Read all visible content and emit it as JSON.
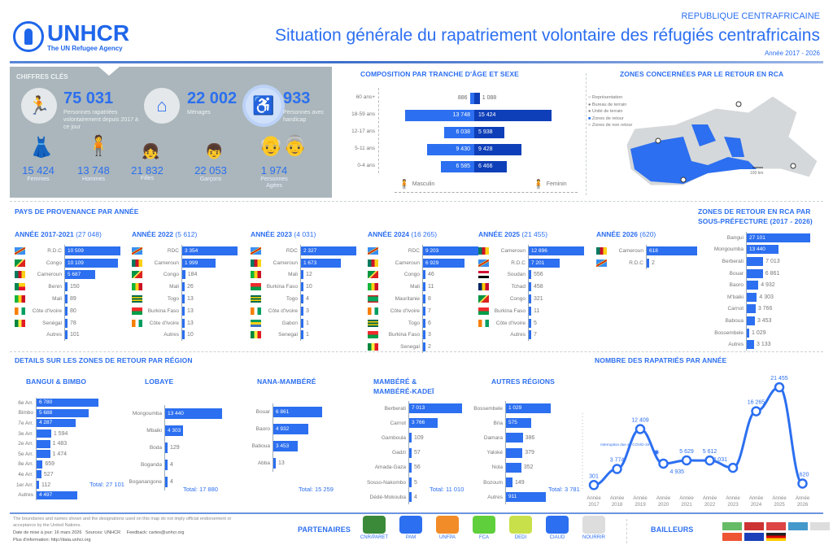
{
  "header": {
    "org": "UNHCR",
    "org_sub": "The UN Refugee Agency",
    "country": "REPUBLIQUE CENTRAFRICAINE",
    "title": "Situation générale du rapatriement volontaire des réfugiés centrafricains",
    "period": "Année 2017 - 2026"
  },
  "key_figures": {
    "title": "CHIFFRES CLÉS",
    "main": [
      {
        "value": "75 031",
        "label": "Personnes rapatriées volontairement depuis 2017 à ce jour",
        "icon": "returnee-icon"
      },
      {
        "value": "22 002",
        "label": "Ménages",
        "icon": "household-icon"
      },
      {
        "value": "933",
        "label": "Personnes avec handicap",
        "icon": "wheelchair-icon"
      }
    ],
    "breakdown": [
      {
        "value": "15 424",
        "label": "Femmes"
      },
      {
        "value": "13 748",
        "label": "Hommes"
      },
      {
        "value": "21 832",
        "label": "Filles"
      },
      {
        "value": "22 053",
        "label": "Garçons"
      },
      {
        "value": "1 974",
        "label": "Personnes Agées"
      }
    ]
  },
  "chart_data": [
    {
      "type": "bar",
      "id": "pyramid",
      "title": "COMPOSITION PAR TRANCHE D'ÂGE ET SEXE",
      "categories": [
        "60 ans+",
        "18-59 ans",
        "12-17 ans",
        "5-11 ans",
        "0-4 ans"
      ],
      "series": [
        {
          "name": "Masculin",
          "values": [
            886,
            13748,
            6038,
            9430,
            6585
          ],
          "color": "#2c6ff0"
        },
        {
          "name": "Feminin",
          "values": [
            1088,
            15424,
            5938,
            9428,
            6466
          ],
          "color": "#0f3fb8"
        }
      ]
    },
    {
      "type": "bar",
      "id": "subprefecture",
      "title": "ZONES DE RETOUR EN RCA PAR SOUS-PRÉFECTURE (2017 - 2026)",
      "categories": [
        "Bangui",
        "Mongoumba",
        "Berberati",
        "Bouar",
        "Baoro",
        "M'baiki",
        "Carnot",
        "Baboua",
        "Bossembele",
        "Autres"
      ],
      "values": [
        27101,
        13440,
        7013,
        6861,
        4932,
        4303,
        3766,
        3453,
        1029,
        3133
      ]
    },
    {
      "type": "line",
      "id": "per_year",
      "title": "NOMBRE DES RAPATRIÉS PAR ANNÉE",
      "categories": [
        "Année 2017",
        "Année 2018",
        "Année 2019",
        "Année 2020",
        "Année 2021",
        "Année 2022",
        "Année 2023",
        "Année 2024",
        "Année 2025",
        "Année 2026"
      ],
      "values": [
        301,
        3774,
        12409,
        4935,
        5629,
        5612,
        4031,
        16265,
        21455,
        620
      ],
      "annotation": "Interruption due au COVID-19",
      "ylim": [
        0,
        22000
      ]
    }
  ],
  "provenance": {
    "title": "PAYS DE PROVENANCE PAR ANNÉE",
    "years": [
      {
        "label": "ANNÉE 2017-2021",
        "total": "(27 048)",
        "items": [
          {
            "c": "R.D.C",
            "v": 10509
          },
          {
            "c": "Congo",
            "v": 10109
          },
          {
            "c": "Cameroun",
            "v": 5687
          },
          {
            "c": "Benin",
            "v": 150
          },
          {
            "c": "Mali",
            "v": 89
          },
          {
            "c": "Côte d'Ivoire",
            "v": 80
          },
          {
            "c": "Senégal",
            "v": 78
          },
          {
            "c": "Autres",
            "v": 101
          }
        ]
      },
      {
        "label": "ANNÉE 2022",
        "total": "(5 612)",
        "items": [
          {
            "c": "RDC",
            "v": 3354
          },
          {
            "c": "Cameroun",
            "v": 1999
          },
          {
            "c": "Congo",
            "v": 184
          },
          {
            "c": "Mali",
            "v": 26
          },
          {
            "c": "Togo",
            "v": 13
          },
          {
            "c": "Burkina Faso",
            "v": 13
          },
          {
            "c": "Côte d'Ivoire",
            "v": 13
          },
          {
            "c": "Autres",
            "v": 10
          }
        ]
      },
      {
        "label": "ANNÉE 2023",
        "total": "(4 031)",
        "items": [
          {
            "c": "RDC",
            "v": 2327
          },
          {
            "c": "Cameroun",
            "v": 1673
          },
          {
            "c": "Mali",
            "v": 12
          },
          {
            "c": "Burkina Faso",
            "v": 10
          },
          {
            "c": "Togo",
            "v": 4
          },
          {
            "c": "Côte d'Ivoire",
            "v": 3
          },
          {
            "c": "Gabon",
            "v": 1
          },
          {
            "c": "Senegal",
            "v": 1
          }
        ]
      },
      {
        "label": "ANNÉE 2024",
        "total": "(16 265)",
        "items": [
          {
            "c": "RDC",
            "v": 9203
          },
          {
            "c": "Cameroun",
            "v": 6929
          },
          {
            "c": "Congo",
            "v": 46
          },
          {
            "c": "Mali",
            "v": 11
          },
          {
            "c": "Mauritanie",
            "v": 8
          },
          {
            "c": "Côte d'Ivoire",
            "v": 7
          },
          {
            "c": "Togo",
            "v": 6
          },
          {
            "c": "Burkina Faso",
            "v": 3
          },
          {
            "c": "Senegal",
            "v": 2
          }
        ]
      },
      {
        "label": "ANNÉE 2025",
        "total": "(21 455)",
        "items": [
          {
            "c": "Cameroun",
            "v": 12896
          },
          {
            "c": "R.D.C",
            "v": 7201
          },
          {
            "c": "Soudan",
            "v": 556
          },
          {
            "c": "Tchad",
            "v": 458
          },
          {
            "c": "Congo",
            "v": 321
          },
          {
            "c": "Burkina Faso",
            "v": 11
          },
          {
            "c": "Côte d'Ivoire",
            "v": 5
          },
          {
            "c": "Autres",
            "v": 7
          }
        ]
      },
      {
        "label": "ANNÉE 2026",
        "total": "(620)",
        "items": [
          {
            "c": "Cameroun",
            "v": 618
          },
          {
            "c": "R.D.C",
            "v": 2
          }
        ]
      }
    ]
  },
  "map": {
    "title": "ZONES CONCERNÉES PAR LE RETOUR EN RCA",
    "legend": [
      "Représentation",
      "Bureau de terrain",
      "Unité de terrain",
      "Zones de retour",
      "Zones de non retour"
    ],
    "scale": "100 km"
  },
  "regions": {
    "title": "DETAILS SUR LES ZONES DE RETOUR PAR RÉGION",
    "blocks": [
      {
        "name": "BANGUI & BIMBO",
        "total": "Total: 27 101",
        "items": [
          {
            "c": "6e Arr.",
            "v": 6780
          },
          {
            "c": "Bimbo",
            "v": 5688
          },
          {
            "c": "7e Arr.",
            "v": 4287
          },
          {
            "c": "3e Arr.",
            "v": 1594
          },
          {
            "c": "2e Arr.",
            "v": 1483
          },
          {
            "c": "5e Arr.",
            "v": 1474
          },
          {
            "c": "8e Arr.",
            "v": 659
          },
          {
            "c": "4e Arr.",
            "v": 527
          },
          {
            "c": "1er Arr.",
            "v": 112
          },
          {
            "c": "Autres",
            "v": 4497
          }
        ]
      },
      {
        "name": "LOBAYE",
        "total": "Total: 17 880",
        "items": [
          {
            "c": "Mongoumba",
            "v": 13440
          },
          {
            "c": "Mbaiki",
            "v": 4303
          },
          {
            "c": "Boda",
            "v": 129
          },
          {
            "c": "Boganda",
            "v": 4
          },
          {
            "c": "Boganangone",
            "v": 4
          }
        ]
      },
      {
        "name": "NANA-MAMBÉRÉ",
        "total": "Total: 15 259",
        "items": [
          {
            "c": "Bouar",
            "v": 6861
          },
          {
            "c": "Baoro",
            "v": 4932
          },
          {
            "c": "Baboua",
            "v": 3453
          },
          {
            "c": "Abba",
            "v": 13
          }
        ]
      },
      {
        "name": "MAMBÉRÉ & MAMBÉRÉ-KADEÏ",
        "total": "Total: 11 010",
        "items": [
          {
            "c": "Berberati",
            "v": 7013
          },
          {
            "c": "Carnot",
            "v": 3766
          },
          {
            "c": "Gamboula",
            "v": 109
          },
          {
            "c": "Gadzi",
            "v": 57
          },
          {
            "c": "Amada-Gaza",
            "v": 56
          },
          {
            "c": "Sosso-Nakombo",
            "v": 5
          },
          {
            "c": "Dédé-Mokouba",
            "v": 4
          }
        ]
      },
      {
        "name": "AUTRES RÉGIONS",
        "total": "Total: 3 781",
        "items": [
          {
            "c": "Bossembele",
            "v": 1029
          },
          {
            "c": "Bria",
            "v": 575
          },
          {
            "c": "Damara",
            "v": 386
          },
          {
            "c": "Yaloké",
            "v": 379
          },
          {
            "c": "Nola",
            "v": 352
          },
          {
            "c": "Bozoum",
            "v": 149
          },
          {
            "c": "Autres",
            "v": 911
          }
        ]
      }
    ]
  },
  "footer": {
    "disclaimer": "The boundaries and names shown and the designations used on this map do not imply official endorsement or acceptance by the United Nations.",
    "date": "Date de mise à jour: 16 mars 2026",
    "sources": "Sources: UNHCR",
    "feedback": "Feedback: cartes@unhcr.org",
    "info": "Plus d'information: http://data.unhcr.org",
    "partners_title": "PARTENAIRES",
    "partners": [
      "CNR/PARET",
      "PAM",
      "UNFPA",
      "FCA",
      "DEDI",
      "CIAUD",
      "NOURRIR"
    ],
    "donors_title": "BAILLEURS"
  },
  "colors": {
    "accent": "#2c6ff0",
    "dark": "#0f3fb8",
    "panel": "#aab6bb"
  }
}
